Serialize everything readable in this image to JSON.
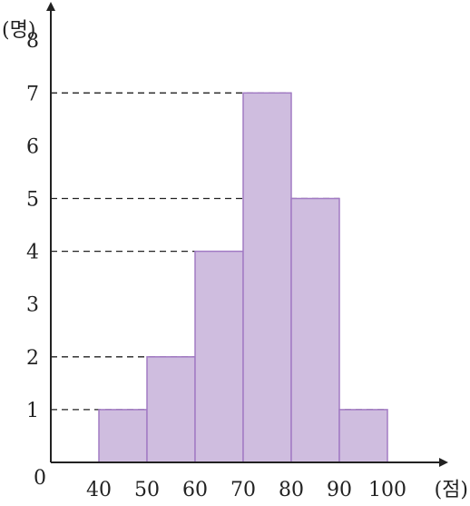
{
  "chart_data": {
    "type": "bar",
    "subtype": "histogram",
    "bin_edges": [
      40,
      50,
      60,
      70,
      80,
      90,
      100
    ],
    "values": [
      1,
      2,
      4,
      7,
      5,
      1
    ],
    "x_tick_labels": [
      "40",
      "50",
      "60",
      "70",
      "80",
      "90",
      "100"
    ],
    "y_tick_labels": [
      "1",
      "2",
      "3",
      "4",
      "5",
      "6",
      "7",
      "8"
    ],
    "origin_label": "0",
    "xlabel": "(점)",
    "ylabel": "(명)",
    "xlim": [
      30,
      108
    ],
    "ylim": [
      0,
      8.8
    ],
    "dashed_guides_at": [
      1,
      2,
      4,
      5,
      7
    ],
    "grid": false,
    "colors": {
      "bar_fill": "#cfbddf",
      "bar_stroke": "#a27bc4",
      "axis": "#222222",
      "guide": "#222222"
    }
  }
}
